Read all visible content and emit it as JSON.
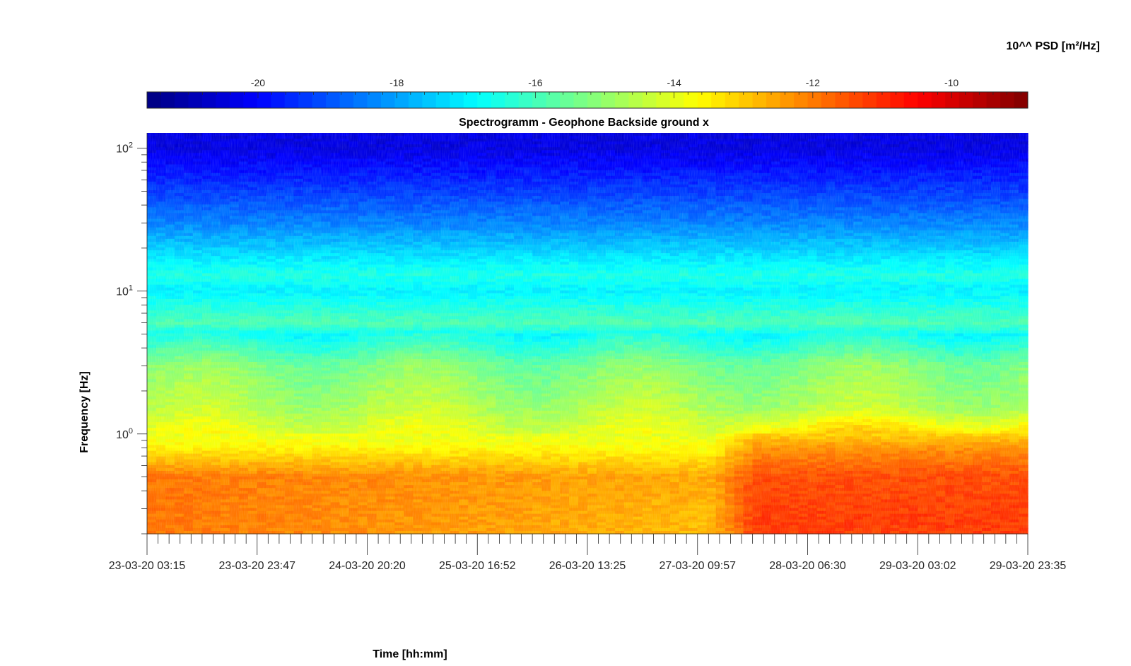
{
  "chart_data": {
    "type": "heatmap",
    "title": "Spectrogramm - Geophone Backside ground x",
    "xlabel": "Time [hh:mm]",
    "ylabel": "Frequency [Hz]",
    "yscale": "log",
    "ylim": [
      0.2,
      128
    ],
    "yticks": [
      {
        "value": 1,
        "base": "10",
        "exp": "0"
      },
      {
        "value": 10,
        "base": "10",
        "exp": "1"
      },
      {
        "value": 100,
        "base": "10",
        "exp": "2"
      }
    ],
    "xticks": [
      "23-03-20 03:15",
      "23-03-20 23:47",
      "24-03-20 20:20",
      "25-03-20 16:52",
      "26-03-20 13:25",
      "27-03-20 09:57",
      "28-03-20 06:30",
      "29-03-20 03:02",
      "29-03-20 23:35"
    ],
    "colorbar": {
      "label": "10^^ PSD [m²/Hz]",
      "colormap": "jet",
      "clim": [
        -21.6,
        -8.9
      ],
      "ticks": [
        "-20",
        "-18",
        "-16",
        "-14",
        "-12",
        "-10"
      ],
      "tick_values": [
        -20,
        -18,
        -16,
        -14,
        -12,
        -10
      ]
    },
    "psd_profile_log10": [
      {
        "frequency_hz": 0.25,
        "early_period": -11.9,
        "mid_period": -12.8,
        "late_period": -11.2
      },
      {
        "frequency_hz": 0.5,
        "early_period": -11.9,
        "mid_period": -12.6,
        "late_period": -11.4
      },
      {
        "frequency_hz": 0.8,
        "early_period": -13.5,
        "mid_period": -13.7,
        "late_period": -12.3
      },
      {
        "frequency_hz": 1.5,
        "early_period": -14.6,
        "mid_period": -14.6,
        "late_period": -14.6
      },
      {
        "frequency_hz": 3,
        "early_period": -15.2,
        "mid_period": -15.4,
        "late_period": -15.2
      },
      {
        "frequency_hz": 5,
        "early_period": -16.7,
        "mid_period": -16.7,
        "late_period": -16.7
      },
      {
        "frequency_hz": 6,
        "early_period": -15.9,
        "mid_period": -15.9,
        "late_period": -15.9
      },
      {
        "frequency_hz": 10,
        "early_period": -17.0,
        "mid_period": -17.0,
        "late_period": -17.0
      },
      {
        "frequency_hz": 13,
        "early_period": -16.5,
        "mid_period": -16.5,
        "late_period": -16.5
      },
      {
        "frequency_hz": 30,
        "early_period": -18.4,
        "mid_period": -18.4,
        "late_period": -18.4
      },
      {
        "frequency_hz": 50,
        "early_period": -19.3,
        "mid_period": -19.3,
        "late_period": -19.3
      },
      {
        "frequency_hz": 100,
        "early_period": -20.4,
        "mid_period": -20.4,
        "late_period": -20.4
      }
    ]
  }
}
